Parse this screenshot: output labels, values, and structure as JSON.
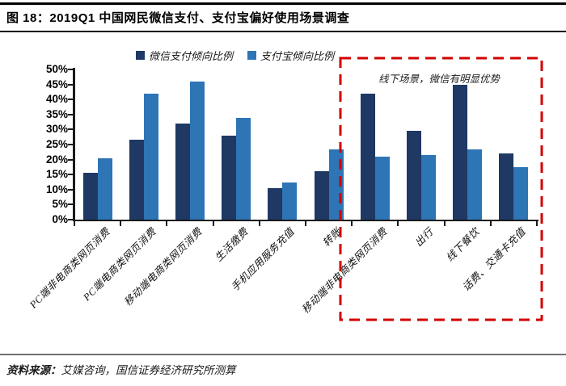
{
  "page": {
    "title": "图 18：2019Q1 中国网民微信支付、支付宝偏好使用场景调查",
    "source": {
      "label": "资料来源：",
      "text": "艾媒咨询，国信证券经济研究所测算"
    }
  },
  "colors": {
    "wechat_bar": "#1f3864",
    "alipay_bar": "#2e75b6",
    "highlight_red": "#d10000",
    "axis": "#1a1a1a"
  },
  "annotation": {
    "text": "线下场景，微信有明显优势"
  },
  "chart_data": {
    "type": "bar",
    "title": "2019Q1 中国网民微信支付、支付宝偏好使用场景调查",
    "categories": [
      "PC端非电商类网页消费",
      "PC端电商类网页消费",
      "移动端电商类网页消费",
      "生活缴费",
      "手机应用服务充值",
      "转账",
      "移动端非电商类网页消费",
      "出行",
      "线下餐饮",
      "话费、交通卡充值"
    ],
    "series": [
      {
        "name": "微信支付倾向比例",
        "color": "#1f3864",
        "values": [
          15.5,
          26.5,
          32,
          28,
          10.5,
          16,
          42,
          29.5,
          45,
          22
        ]
      },
      {
        "name": "支付宝倾向比例",
        "color": "#2e75b6",
        "values": [
          20.5,
          42,
          46,
          34,
          12.5,
          23.5,
          21,
          21.5,
          23.5,
          17.5
        ]
      }
    ],
    "ylabel": "",
    "xlabel": "",
    "ylim": [
      0,
      50
    ],
    "ytick_step": 5,
    "ytick_labels": [
      "0%",
      "5%",
      "10%",
      "15%",
      "20%",
      "25%",
      "30%",
      "35%",
      "40%",
      "45%",
      "50%"
    ],
    "legend_position": "top",
    "grid": false,
    "highlight": {
      "categories": [
        "移动端非电商类网页消费",
        "出行",
        "线下餐饮",
        "话费、交通卡充值"
      ],
      "note": "线下场景，微信有明显优势"
    }
  }
}
